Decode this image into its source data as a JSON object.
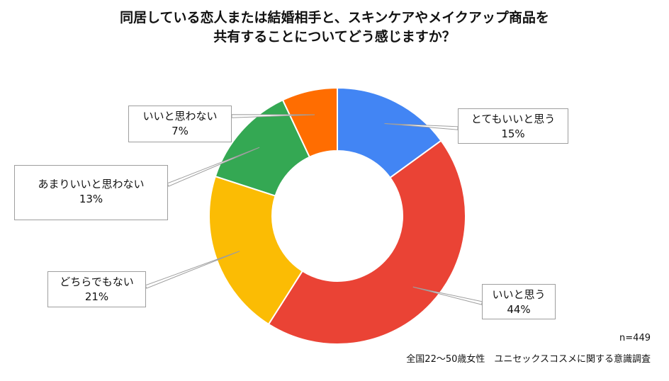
{
  "chart_data": {
    "type": "pie",
    "donut": true,
    "title_lines": [
      "同居している恋人または結婚相手と、スキンケアやメイクアップ商品を",
      "共有することについてどう感じますか？"
    ],
    "slices": [
      {
        "label": "とてもいいと思う",
        "value": 15,
        "value_label": "15%",
        "color": "#4285f4"
      },
      {
        "label": "いいと思う",
        "value": 44,
        "value_label": "44%",
        "color": "#ea4335"
      },
      {
        "label": "どちらでもない",
        "value": 21,
        "value_label": "21%",
        "color": "#fbbc04"
      },
      {
        "label": "あまりいいと思わない",
        "value": 13,
        "value_label": "13%",
        "color": "#34a853"
      },
      {
        "label": "いいと思わない",
        "value": 7,
        "value_label": "7%",
        "color": "#ff6d01"
      }
    ],
    "sample_note": "n=449",
    "source_note": "全国22〜50歳女性　ユニセックスコスメに関する意識調査"
  }
}
